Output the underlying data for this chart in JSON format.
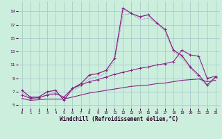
{
  "xlabel": "Windchill (Refroidissement éolien,°C)",
  "background_color": "#cceedd",
  "grid_color": "#aacccc",
  "line_color": "#882288",
  "x_ticks": [
    0,
    1,
    2,
    3,
    4,
    5,
    6,
    7,
    8,
    9,
    10,
    11,
    12,
    13,
    14,
    15,
    16,
    17,
    18,
    19,
    20,
    21,
    22,
    23
  ],
  "y_ticks": [
    5,
    7,
    9,
    11,
    13,
    15,
    17,
    19
  ],
  "ylim": [
    4.5,
    20.5
  ],
  "xlim": [
    -0.5,
    23.5
  ],
  "series1_x": [
    0,
    1,
    2,
    3,
    4,
    5,
    6,
    7,
    8,
    9,
    10,
    11,
    12,
    13,
    14,
    15,
    16,
    17,
    18,
    19,
    20,
    21,
    22,
    23
  ],
  "series1_y": [
    7.2,
    6.2,
    6.2,
    7.0,
    7.2,
    5.7,
    7.5,
    8.2,
    9.5,
    9.7,
    10.2,
    12.0,
    19.5,
    18.7,
    18.2,
    18.5,
    17.3,
    16.3,
    13.2,
    12.4,
    10.7,
    9.5,
    8.0,
    9.2
  ],
  "series2_x": [
    0,
    1,
    2,
    3,
    4,
    5,
    6,
    7,
    8,
    9,
    10,
    11,
    12,
    13,
    14,
    15,
    16,
    17,
    18,
    19,
    20,
    21,
    22,
    23
  ],
  "series2_y": [
    6.5,
    6.0,
    6.1,
    6.5,
    6.7,
    6.2,
    7.5,
    8.0,
    8.5,
    8.8,
    9.2,
    9.6,
    9.9,
    10.2,
    10.5,
    10.7,
    11.0,
    11.2,
    11.5,
    13.2,
    12.5,
    12.3,
    9.0,
    9.3
  ],
  "series3_x": [
    0,
    1,
    2,
    3,
    4,
    5,
    6,
    7,
    8,
    9,
    10,
    11,
    12,
    13,
    14,
    15,
    16,
    17,
    18,
    19,
    20,
    21,
    22,
    23
  ],
  "series3_y": [
    6.0,
    5.7,
    5.8,
    5.9,
    5.9,
    5.9,
    6.2,
    6.5,
    6.8,
    7.0,
    7.2,
    7.4,
    7.6,
    7.8,
    7.9,
    8.0,
    8.2,
    8.3,
    8.5,
    8.7,
    8.8,
    8.9,
    8.5,
    8.7
  ],
  "series_dotted_x": [
    0,
    1,
    2,
    3,
    4,
    5,
    6,
    7,
    8,
    9,
    10,
    11,
    12,
    13,
    14,
    15,
    16,
    17,
    18,
    19,
    20,
    21,
    22,
    23
  ],
  "series_dotted_y": [
    6.8,
    6.1,
    6.1,
    6.6,
    6.9,
    5.9,
    7.2,
    7.8,
    9.0,
    9.2,
    9.8,
    11.5,
    18.5,
    18.7,
    17.8,
    18.0,
    17.3,
    16.0,
    13.0,
    12.0,
    10.5,
    9.2,
    7.8,
    9.0
  ]
}
